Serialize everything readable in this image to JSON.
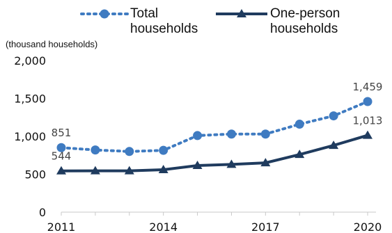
{
  "chart_data": {
    "type": "line",
    "title": "",
    "unit_label": "(thousand households)",
    "x": [
      2011,
      2012,
      2013,
      2014,
      2015,
      2016,
      2017,
      2018,
      2019,
      2020
    ],
    "x_tick_labels": [
      "2011",
      "2014",
      "2017",
      "2020"
    ],
    "y_tick_labels": [
      "0",
      "500",
      "1,000",
      "1,500",
      "2,000"
    ],
    "ylim": [
      0,
      2000
    ],
    "grid": false,
    "legend_position": "top",
    "series": [
      {
        "name": "Total households",
        "legend_lines": [
          "Total",
          "households"
        ],
        "color": "#3F7BC1",
        "style": "dotted-circle",
        "values": [
          851,
          820,
          800,
          815,
          1010,
          1030,
          1030,
          1160,
          1270,
          1459
        ],
        "labels": [
          {
            "index": 0,
            "text": "851"
          },
          {
            "index": 9,
            "text": "1,459"
          }
        ]
      },
      {
        "name": "One-person households",
        "legend_lines": [
          "One-person",
          "households"
        ],
        "color": "#1F3B5E",
        "style": "solid-triangle",
        "values": [
          544,
          545,
          545,
          560,
          615,
          630,
          650,
          760,
          880,
          1013
        ],
        "labels": [
          {
            "index": 0,
            "text": "544"
          },
          {
            "index": 9,
            "text": "1,013"
          }
        ]
      }
    ]
  }
}
